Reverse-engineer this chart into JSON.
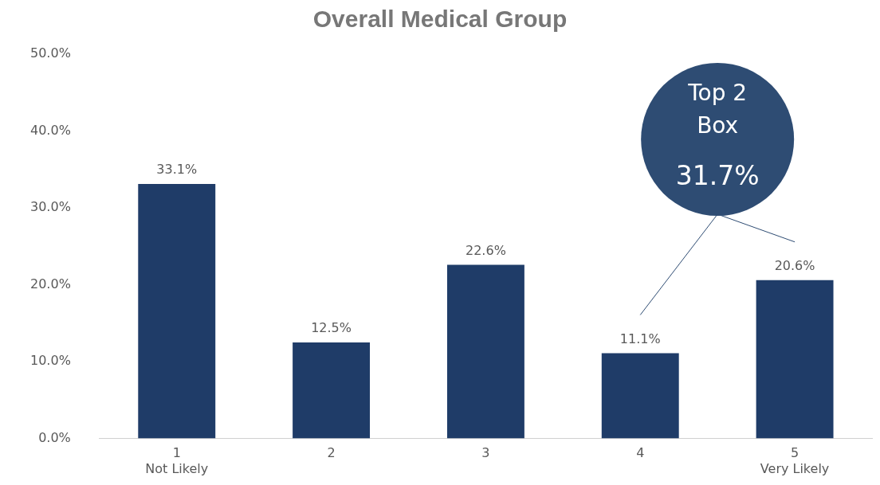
{
  "chart_data": {
    "type": "bar",
    "title": "Overall Medical Group",
    "categories": [
      "1\nNot Likely",
      "2",
      "3",
      "4",
      "5\nVery Likely"
    ],
    "values": [
      33.1,
      12.5,
      22.6,
      11.1,
      20.6
    ],
    "value_labels": [
      "33.1%",
      "12.5%",
      "22.6%",
      "11.1%",
      "20.6%"
    ],
    "color": "#1f3c68",
    "ylim": [
      0,
      50
    ],
    "yticks": [
      {
        "value": 0,
        "label": "0.0%"
      },
      {
        "value": 10,
        "label": "10.0%"
      },
      {
        "value": 20,
        "label": "20.0%"
      },
      {
        "value": 30,
        "label": "30.0%"
      },
      {
        "value": 40,
        "label": "40.0%"
      },
      {
        "value": 50,
        "label": "50.0%"
      }
    ],
    "grid": false,
    "annotations": [
      "Top 2\nBox",
      "31.7%"
    ]
  }
}
